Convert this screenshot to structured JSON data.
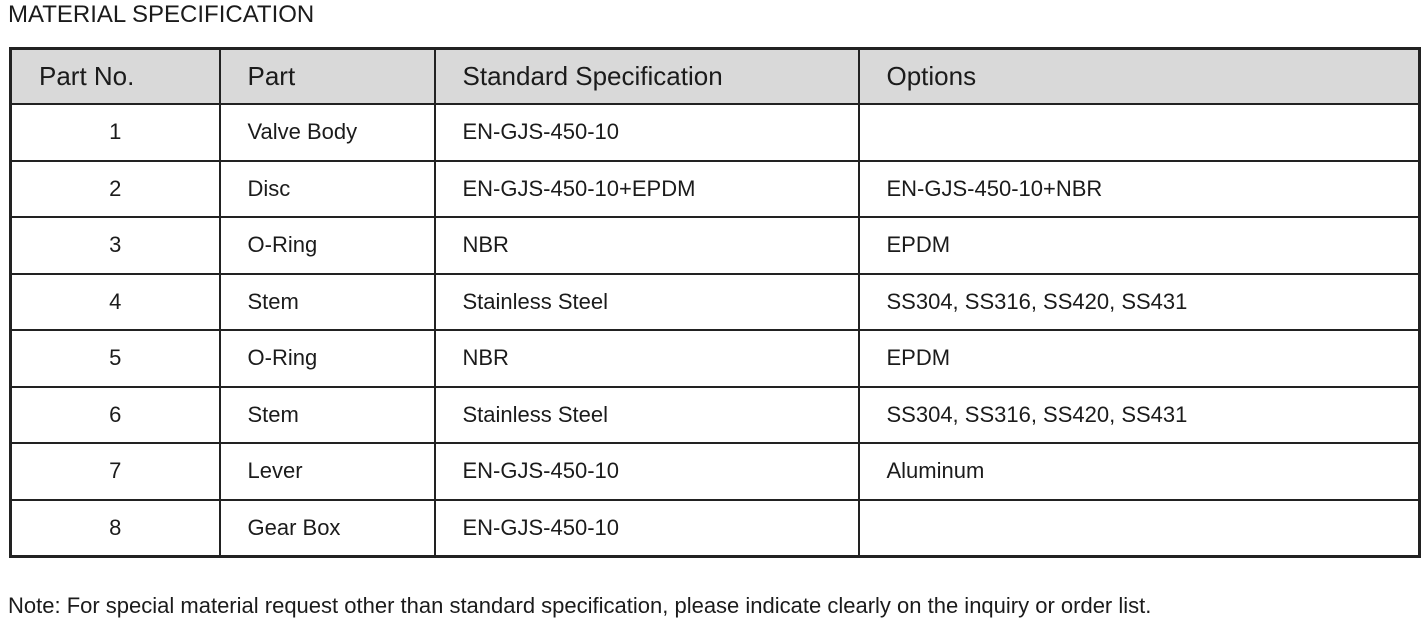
{
  "page": {
    "title": "MATERIAL SPECIFICATION",
    "note": "Note: For special material request other than standard specification, please indicate clearly on the inquiry or order list."
  },
  "colors": {
    "header_bg": "#d9d9d9",
    "border": "#222222",
    "text": "#1b1b1b"
  },
  "table": {
    "columns": [
      "Part No.",
      "Part",
      "Standard Specification",
      "Options"
    ],
    "rows": [
      {
        "part_no": "1",
        "part": "Valve Body",
        "standard": "EN-GJS-450-10",
        "options": ""
      },
      {
        "part_no": "2",
        "part": "Disc",
        "standard": "EN-GJS-450-10+EPDM",
        "options": "EN-GJS-450-10+NBR"
      },
      {
        "part_no": "3",
        "part": "O-Ring",
        "standard": "NBR",
        "options": "EPDM"
      },
      {
        "part_no": "4",
        "part": "Stem",
        "standard": "Stainless Steel",
        "options": "SS304, SS316, SS420, SS431"
      },
      {
        "part_no": "5",
        "part": "O-Ring",
        "standard": "NBR",
        "options": "EPDM"
      },
      {
        "part_no": "6",
        "part": "Stem",
        "standard": "Stainless Steel",
        "options": "SS304, SS316, SS420, SS431"
      },
      {
        "part_no": "7",
        "part": "Lever",
        "standard": "EN-GJS-450-10",
        "options": "Aluminum"
      },
      {
        "part_no": "8",
        "part": "Gear Box",
        "standard": "EN-GJS-450-10",
        "options": ""
      }
    ]
  }
}
